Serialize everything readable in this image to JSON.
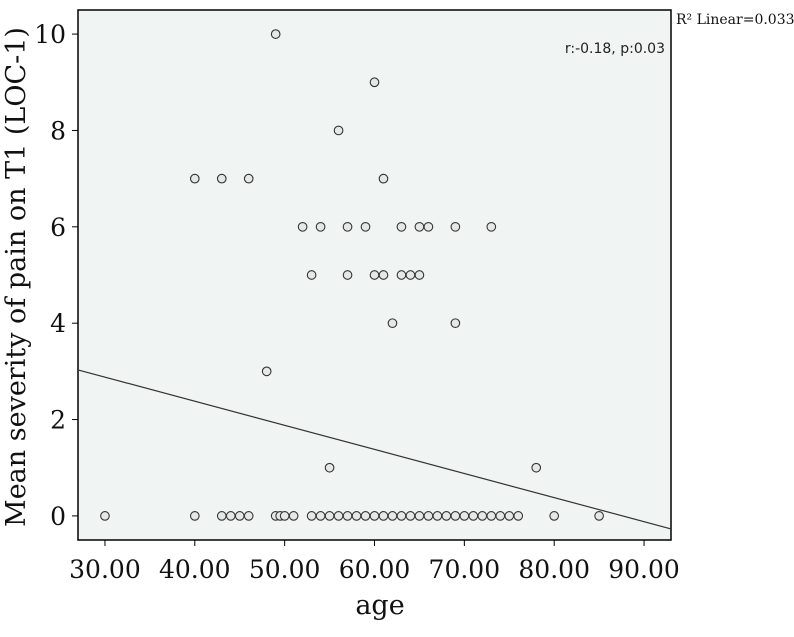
{
  "chart_data": {
    "type": "scatter",
    "xlabel": "age",
    "ylabel": "Mean severity of pain on T1 (LOC-1)",
    "xlim": [
      27,
      93
    ],
    "ylim": [
      -0.5,
      10.5
    ],
    "x_ticks": [
      30,
      40,
      50,
      60,
      70,
      80,
      90
    ],
    "x_tick_labels": [
      "30.00",
      "40.00",
      "50.00",
      "60.00",
      "70.00",
      "80.00",
      "90.00"
    ],
    "y_ticks": [
      0,
      2,
      4,
      6,
      8,
      10
    ],
    "y_tick_labels": [
      "0",
      "2",
      "4",
      "6",
      "8",
      "10"
    ],
    "annotation": "r:-0.18, p:0.03",
    "r2_label": "R² Linear=0.033",
    "fit_line": {
      "x": [
        27,
        93
      ],
      "y": [
        3.03,
        -0.27
      ]
    },
    "background": "#f0f4f3",
    "points": [
      {
        "x": 30,
        "y": 0
      },
      {
        "x": 40,
        "y": 0
      },
      {
        "x": 43,
        "y": 0
      },
      {
        "x": 44,
        "y": 0
      },
      {
        "x": 45,
        "y": 0
      },
      {
        "x": 46,
        "y": 0
      },
      {
        "x": 49,
        "y": 0
      },
      {
        "x": 49.5,
        "y": 0
      },
      {
        "x": 50,
        "y": 0
      },
      {
        "x": 51,
        "y": 0
      },
      {
        "x": 53,
        "y": 0
      },
      {
        "x": 54,
        "y": 0
      },
      {
        "x": 55,
        "y": 0
      },
      {
        "x": 56,
        "y": 0
      },
      {
        "x": 57,
        "y": 0
      },
      {
        "x": 58,
        "y": 0
      },
      {
        "x": 59,
        "y": 0
      },
      {
        "x": 60,
        "y": 0
      },
      {
        "x": 61,
        "y": 0
      },
      {
        "x": 62,
        "y": 0
      },
      {
        "x": 63,
        "y": 0
      },
      {
        "x": 64,
        "y": 0
      },
      {
        "x": 65,
        "y": 0
      },
      {
        "x": 66,
        "y": 0
      },
      {
        "x": 67,
        "y": 0
      },
      {
        "x": 68,
        "y": 0
      },
      {
        "x": 69,
        "y": 0
      },
      {
        "x": 70,
        "y": 0
      },
      {
        "x": 71,
        "y": 0
      },
      {
        "x": 72,
        "y": 0
      },
      {
        "x": 73,
        "y": 0
      },
      {
        "x": 74,
        "y": 0
      },
      {
        "x": 75,
        "y": 0
      },
      {
        "x": 76,
        "y": 0
      },
      {
        "x": 80,
        "y": 0
      },
      {
        "x": 85,
        "y": 0
      },
      {
        "x": 55,
        "y": 1
      },
      {
        "x": 78,
        "y": 1
      },
      {
        "x": 48,
        "y": 3
      },
      {
        "x": 62,
        "y": 4
      },
      {
        "x": 69,
        "y": 4
      },
      {
        "x": 53,
        "y": 5
      },
      {
        "x": 57,
        "y": 5
      },
      {
        "x": 60,
        "y": 5
      },
      {
        "x": 61,
        "y": 5
      },
      {
        "x": 63,
        "y": 5
      },
      {
        "x": 64,
        "y": 5
      },
      {
        "x": 65,
        "y": 5
      },
      {
        "x": 52,
        "y": 6
      },
      {
        "x": 54,
        "y": 6
      },
      {
        "x": 57,
        "y": 6
      },
      {
        "x": 59,
        "y": 6
      },
      {
        "x": 63,
        "y": 6
      },
      {
        "x": 65,
        "y": 6
      },
      {
        "x": 66,
        "y": 6
      },
      {
        "x": 69,
        "y": 6
      },
      {
        "x": 73,
        "y": 6
      },
      {
        "x": 40,
        "y": 7
      },
      {
        "x": 43,
        "y": 7
      },
      {
        "x": 46,
        "y": 7
      },
      {
        "x": 61,
        "y": 7
      },
      {
        "x": 56,
        "y": 8
      },
      {
        "x": 60,
        "y": 9
      },
      {
        "x": 49,
        "y": 10
      }
    ]
  }
}
